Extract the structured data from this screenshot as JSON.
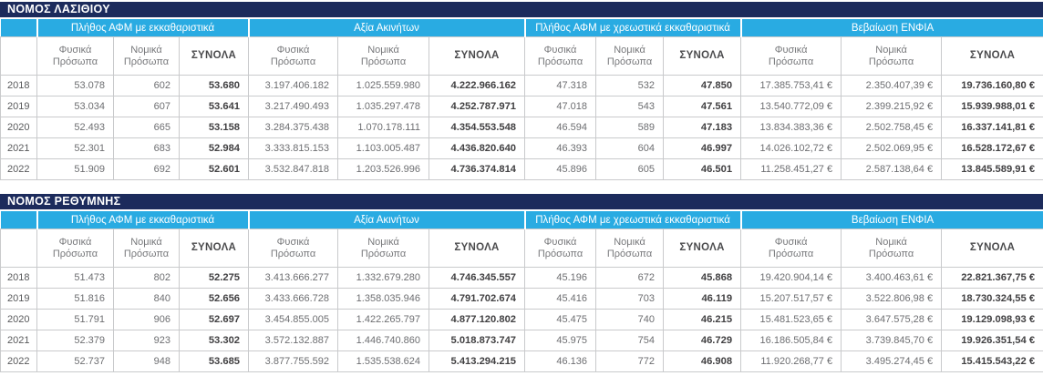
{
  "colors": {
    "title_bar_navy": "#1c2b5c",
    "group_band_cyan": "#29abe2",
    "grid_gray": "#c9cacc"
  },
  "column_groups": [
    "Πλήθος ΑΦΜ με εκκαθαριστικά",
    "Αξία Ακινήτων",
    "Πλήθος ΑΦΜ με χρεωστικά εκκαθαριστικά",
    "Βεβαίωση ΕΝΦΙΑ"
  ],
  "sub_columns": [
    "Φυσικά Πρόσωπα",
    "Νομικά Πρόσωπα",
    "ΣΥΝΟΛΑ"
  ],
  "tables": [
    {
      "title": "ΝΟΜΟΣ ΛΑΣΙΘΙΟΥ",
      "rows": [
        {
          "year": "2018",
          "values": [
            "53.078",
            "602",
            "53.680",
            "3.197.406.182",
            "1.025.559.980",
            "4.222.966.162",
            "47.318",
            "532",
            "47.850",
            "17.385.753,41 €",
            "2.350.407,39 €",
            "19.736.160,80 €"
          ]
        },
        {
          "year": "2019",
          "values": [
            "53.034",
            "607",
            "53.641",
            "3.217.490.493",
            "1.035.297.478",
            "4.252.787.971",
            "47.018",
            "543",
            "47.561",
            "13.540.772,09 €",
            "2.399.215,92 €",
            "15.939.988,01 €"
          ]
        },
        {
          "year": "2020",
          "values": [
            "52.493",
            "665",
            "53.158",
            "3.284.375.438",
            "1.070.178.111",
            "4.354.553.548",
            "46.594",
            "589",
            "47.183",
            "13.834.383,36 €",
            "2.502.758,45 €",
            "16.337.141,81 €"
          ]
        },
        {
          "year": "2021",
          "values": [
            "52.301",
            "683",
            "52.984",
            "3.333.815.153",
            "1.103.005.487",
            "4.436.820.640",
            "46.393",
            "604",
            "46.997",
            "14.026.102,72 €",
            "2.502.069,95 €",
            "16.528.172,67 €"
          ]
        },
        {
          "year": "2022",
          "values": [
            "51.909",
            "692",
            "52.601",
            "3.532.847.818",
            "1.203.526.996",
            "4.736.374.814",
            "45.896",
            "605",
            "46.501",
            "11.258.451,27 €",
            "2.587.138,64 €",
            "13.845.589,91 €"
          ]
        }
      ]
    },
    {
      "title": "ΝΟΜΟΣ ΡΕΘΥΜΝΗΣ",
      "rows": [
        {
          "year": "2018",
          "values": [
            "51.473",
            "802",
            "52.275",
            "3.413.666.277",
            "1.332.679.280",
            "4.746.345.557",
            "45.196",
            "672",
            "45.868",
            "19.420.904,14 €",
            "3.400.463,61 €",
            "22.821.367,75 €"
          ]
        },
        {
          "year": "2019",
          "values": [
            "51.816",
            "840",
            "52.656",
            "3.433.666.728",
            "1.358.035.946",
            "4.791.702.674",
            "45.416",
            "703",
            "46.119",
            "15.207.517,57 €",
            "3.522.806,98 €",
            "18.730.324,55 €"
          ]
        },
        {
          "year": "2020",
          "values": [
            "51.791",
            "906",
            "52.697",
            "3.454.855.005",
            "1.422.265.797",
            "4.877.120.802",
            "45.475",
            "740",
            "46.215",
            "15.481.523,65 €",
            "3.647.575,28 €",
            "19.129.098,93 €"
          ]
        },
        {
          "year": "2021",
          "values": [
            "52.379",
            "923",
            "53.302",
            "3.572.132.887",
            "1.446.740.860",
            "5.018.873.747",
            "45.975",
            "754",
            "46.729",
            "16.186.505,84 €",
            "3.739.845,70 €",
            "19.926.351,54 €"
          ]
        },
        {
          "year": "2022",
          "values": [
            "52.737",
            "948",
            "53.685",
            "3.877.755.592",
            "1.535.538.624",
            "5.413.294.215",
            "46.136",
            "772",
            "46.908",
            "11.920.268,77 €",
            "3.495.274,45 €",
            "15.415.543,22 €"
          ]
        }
      ]
    }
  ]
}
